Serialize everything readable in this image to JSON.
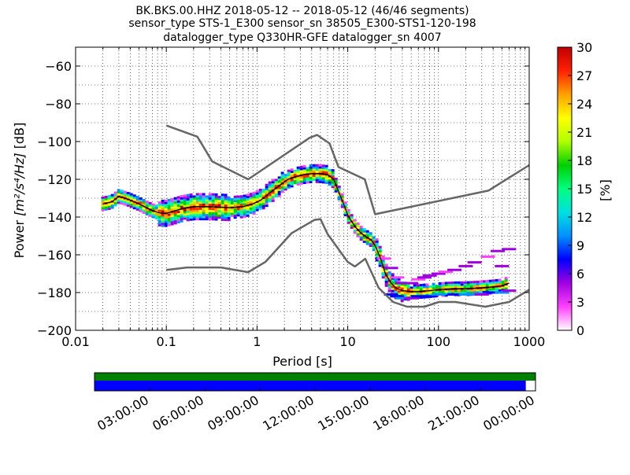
{
  "title_lines": [
    "BK.BKS.00.HHZ   2018-05-12 -- 2018-05-12  (46/46 segments)",
    "sensor_type STS-1_E300 sensor_sn 38505_E300-STS1-120-198",
    "datalogger_type Q330HR-GFE datalogger_sn 4007"
  ],
  "chart_data": {
    "type": "heatmap",
    "xlabel": "Period [s]",
    "ylabel_prefix": "Power ",
    "ylabel_units": "[m²/s⁴/Hz]",
    "ylabel_suffix": " [dB]",
    "x_scale": "log",
    "xlim": [
      0.01,
      1000
    ],
    "ylim": [
      -200,
      -50
    ],
    "x_ticks": [
      0.01,
      0.1,
      1,
      10,
      100,
      1000
    ],
    "x_tick_labels": [
      "0.01",
      "0.1",
      "1",
      "10",
      "100",
      "1000"
    ],
    "y_ticks": [
      -200,
      -180,
      -160,
      -140,
      -120,
      -100,
      -80,
      -60
    ],
    "y_tick_labels": [
      "−200",
      "−180",
      "−160",
      "−140",
      "−120",
      "−100",
      "−80",
      "−60"
    ],
    "grid": true,
    "noise_models": {
      "high": {
        "x": [
          0.1,
          0.22,
          0.32,
          0.8,
          3.8,
          4.6,
          6.3,
          7.9,
          15.4,
          20,
          354.8,
          1000
        ],
        "y": [
          -91.5,
          -97.4,
          -110.5,
          -120,
          -98,
          -96.5,
          -101,
          -113.5,
          -120,
          -138.5,
          -126,
          -112.5
        ]
      },
      "low": {
        "x": [
          0.1,
          0.17,
          0.4,
          0.8,
          1.24,
          2.4,
          4.3,
          5,
          6,
          10,
          12,
          15.6,
          21.9,
          31.6,
          45,
          70,
          101,
          154,
          328,
          600,
          1000
        ],
        "y": [
          -168,
          -166.7,
          -166.7,
          -169.2,
          -163.7,
          -148.6,
          -141.5,
          -141.1,
          -149,
          -163.8,
          -166.2,
          -162.1,
          -177.5,
          -185,
          -187.5,
          -187.5,
          -185,
          -185,
          -187.5,
          -185,
          -178.5
        ]
      }
    },
    "mode_line": {
      "x": [
        0.02,
        0.025,
        0.03,
        0.035,
        0.04,
        0.05,
        0.06,
        0.07,
        0.08,
        0.09,
        0.1,
        0.12,
        0.15,
        0.2,
        0.3,
        0.5,
        0.7,
        0.9,
        1.1,
        1.4,
        1.8,
        2.2,
        2.7,
        3.3,
        4,
        5,
        6,
        7,
        8,
        9,
        10,
        12,
        14,
        16,
        18,
        20,
        23,
        26,
        30,
        35,
        40,
        50,
        60,
        80,
        100,
        150,
        200,
        300,
        400,
        500,
        600
      ],
      "y": [
        -133,
        -132,
        -129,
        -130,
        -131,
        -133,
        -135,
        -136.5,
        -137.5,
        -138,
        -138,
        -137,
        -135.5,
        -134.5,
        -134.5,
        -135,
        -134.5,
        -133,
        -131,
        -127,
        -123,
        -120,
        -118.5,
        -117.5,
        -117,
        -117,
        -117.5,
        -120,
        -127,
        -133,
        -139,
        -145,
        -148.5,
        -150.5,
        -152,
        -155,
        -162,
        -170,
        -175,
        -178,
        -179,
        -179.5,
        -179.5,
        -179,
        -178.5,
        -178,
        -178,
        -177.5,
        -177,
        -176.5,
        -175
      ]
    },
    "upper_scatter": {
      "x": [
        25,
        30,
        35,
        40,
        50,
        60,
        70,
        80,
        100,
        120,
        150,
        200,
        250,
        350,
        450,
        500,
        600
      ],
      "y": [
        -162,
        -167,
        -172,
        -175,
        -175,
        -173,
        -172,
        -171,
        -170,
        -169,
        -168,
        -166,
        -164,
        -161,
        -158,
        -166,
        -157
      ]
    },
    "lower_scatter": {
      "x": [
        30,
        35,
        40,
        50,
        60,
        80,
        100,
        150,
        200,
        300,
        400,
        500,
        600
      ],
      "y": [
        -181,
        -182,
        -183,
        -183,
        -182,
        -182,
        -181,
        -181,
        -181,
        -181,
        -180,
        -180,
        -179
      ]
    },
    "colorbar": {
      "label": "[%]",
      "range": [
        0,
        30
      ],
      "ticks": [
        0,
        3,
        6,
        9,
        12,
        15,
        18,
        21,
        24,
        27,
        30
      ],
      "tick_labels": [
        "0",
        "3",
        "6",
        "9",
        "12",
        "15",
        "18",
        "21",
        "24",
        "27",
        "30"
      ],
      "colors": [
        "#ffffff",
        "#ff40ff",
        "#a000e0",
        "#0000ff",
        "#0090ff",
        "#00e0e0",
        "#00ff80",
        "#00d000",
        "#b0ff00",
        "#ffff00",
        "#ffa000",
        "#ff2000",
        "#c00000"
      ]
    },
    "data_availability": {
      "top_bar_color": "#008000",
      "bottom_bar_color": "#0000ff",
      "coverage_fraction": 0.978,
      "tick_labels": [
        "03:00:00",
        "06:00:00",
        "09:00:00",
        "12:00:00",
        "15:00:00",
        "18:00:00",
        "21:00:00",
        "00:00:00"
      ]
    }
  }
}
